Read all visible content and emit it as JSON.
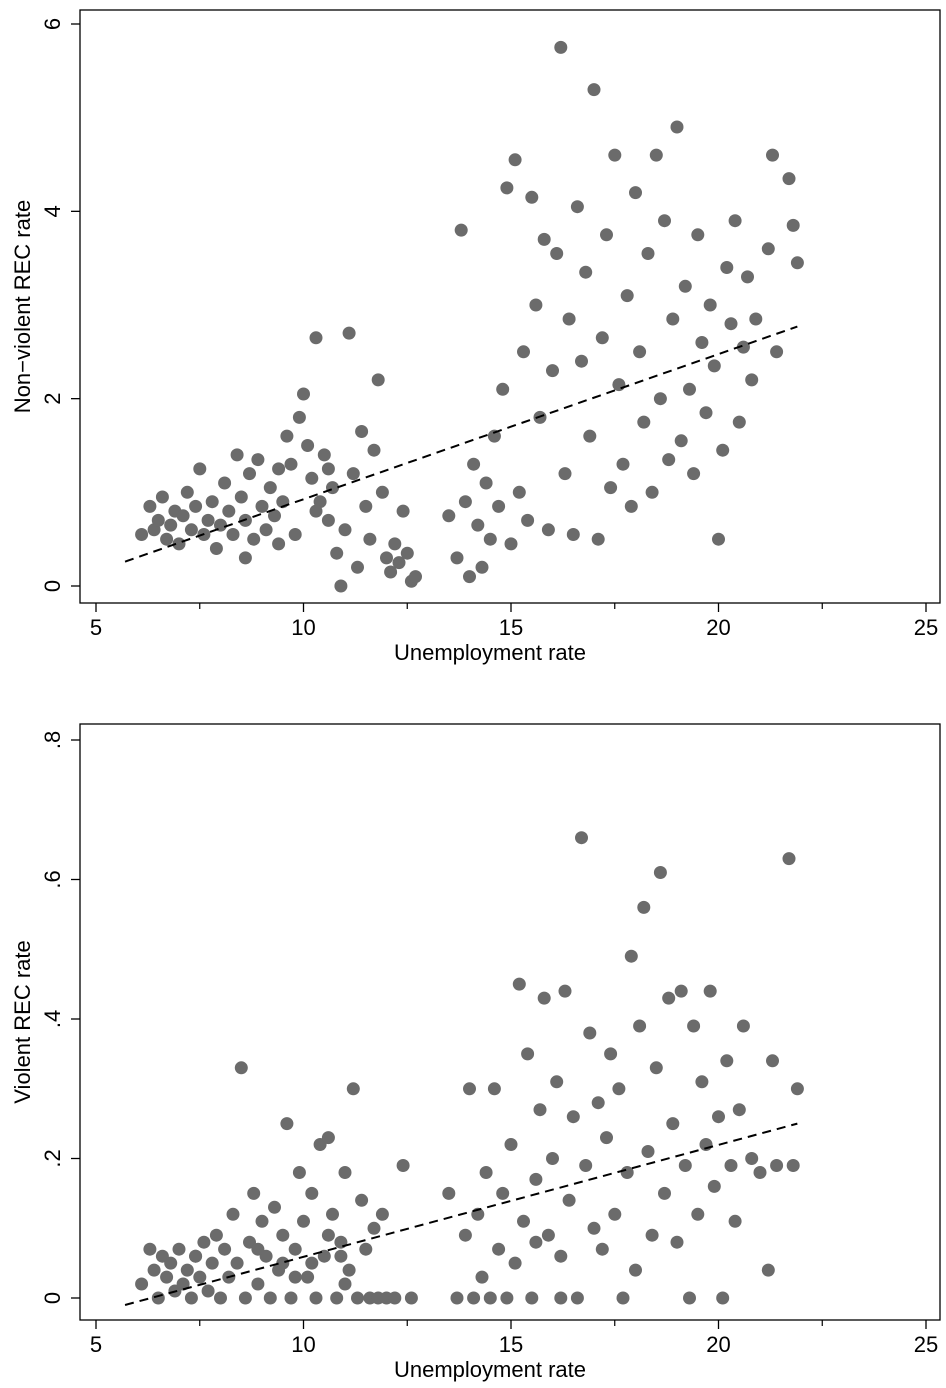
{
  "chart_data": [
    {
      "type": "scatter",
      "xlabel": "Unemployment rate",
      "ylabel": "Non−violent REC rate",
      "xlim": [
        5,
        25
      ],
      "ylim": [
        0,
        6
      ],
      "x_ticks": [
        5,
        10,
        15,
        20,
        25
      ],
      "x_tick_labels": [
        "5",
        "10",
        "15",
        "20",
        "25"
      ],
      "y_ticks": [
        0,
        2,
        4,
        6
      ],
      "y_tick_labels": [
        "0",
        "2",
        "4",
        "6"
      ],
      "grid": false,
      "fit_line": {
        "style": "dashed",
        "x": [
          5.7,
          21.9
        ],
        "y": [
          0.26,
          2.77
        ]
      },
      "point_color": "#6b6b6b",
      "points": [
        [
          6.1,
          0.55
        ],
        [
          6.3,
          0.85
        ],
        [
          6.4,
          0.6
        ],
        [
          6.5,
          0.7
        ],
        [
          6.6,
          0.95
        ],
        [
          6.7,
          0.5
        ],
        [
          6.8,
          0.65
        ],
        [
          6.9,
          0.8
        ],
        [
          7.0,
          0.45
        ],
        [
          7.1,
          0.75
        ],
        [
          7.2,
          1.0
        ],
        [
          7.3,
          0.6
        ],
        [
          7.4,
          0.85
        ],
        [
          7.5,
          1.25
        ],
        [
          7.6,
          0.55
        ],
        [
          7.7,
          0.7
        ],
        [
          7.8,
          0.9
        ],
        [
          7.9,
          0.4
        ],
        [
          8.0,
          0.65
        ],
        [
          8.1,
          1.1
        ],
        [
          8.2,
          0.8
        ],
        [
          8.3,
          0.55
        ],
        [
          8.4,
          1.4
        ],
        [
          8.5,
          0.95
        ],
        [
          8.6,
          0.7
        ],
        [
          8.7,
          1.2
        ],
        [
          8.8,
          0.5
        ],
        [
          8.9,
          1.35
        ],
        [
          9.0,
          0.85
        ],
        [
          9.1,
          0.6
        ],
        [
          9.2,
          1.05
        ],
        [
          9.3,
          0.75
        ],
        [
          9.4,
          1.25
        ],
        [
          9.5,
          0.9
        ],
        [
          9.6,
          1.6
        ],
        [
          9.7,
          1.3
        ],
        [
          9.8,
          0.55
        ],
        [
          9.9,
          1.8
        ],
        [
          10.0,
          2.05
        ],
        [
          10.1,
          1.5
        ],
        [
          10.2,
          1.15
        ],
        [
          10.3,
          2.65
        ],
        [
          10.4,
          0.9
        ],
        [
          10.5,
          1.4
        ],
        [
          10.6,
          0.7
        ],
        [
          10.7,
          1.05
        ],
        [
          10.8,
          0.35
        ],
        [
          10.9,
          0.0
        ],
        [
          11.0,
          0.6
        ],
        [
          11.1,
          2.7
        ],
        [
          11.2,
          1.2
        ],
        [
          11.3,
          0.2
        ],
        [
          11.4,
          1.65
        ],
        [
          11.5,
          0.85
        ],
        [
          11.6,
          0.5
        ],
        [
          11.7,
          1.45
        ],
        [
          11.8,
          2.2
        ],
        [
          11.9,
          1.0
        ],
        [
          12.0,
          0.3
        ],
        [
          12.1,
          0.15
        ],
        [
          12.2,
          0.45
        ],
        [
          12.3,
          0.25
        ],
        [
          12.4,
          0.8
        ],
        [
          12.5,
          0.35
        ],
        [
          12.6,
          0.05
        ],
        [
          12.7,
          0.1
        ],
        [
          10.3,
          0.8
        ],
        [
          10.6,
          1.25
        ],
        [
          9.4,
          0.45
        ],
        [
          8.6,
          0.3
        ],
        [
          13.5,
          0.75
        ],
        [
          13.7,
          0.3
        ],
        [
          13.8,
          3.8
        ],
        [
          13.9,
          0.9
        ],
        [
          14.0,
          0.1
        ],
        [
          14.1,
          1.3
        ],
        [
          14.2,
          0.65
        ],
        [
          14.3,
          0.2
        ],
        [
          14.4,
          1.1
        ],
        [
          14.5,
          0.5
        ],
        [
          14.6,
          1.6
        ],
        [
          14.7,
          0.85
        ],
        [
          14.8,
          2.1
        ],
        [
          14.9,
          4.25
        ],
        [
          15.0,
          0.45
        ],
        [
          15.1,
          4.55
        ],
        [
          15.2,
          1.0
        ],
        [
          15.3,
          2.5
        ],
        [
          15.4,
          0.7
        ],
        [
          15.5,
          4.15
        ],
        [
          15.6,
          3.0
        ],
        [
          15.7,
          1.8
        ],
        [
          15.8,
          3.7
        ],
        [
          15.9,
          0.6
        ],
        [
          16.0,
          2.3
        ],
        [
          16.1,
          3.55
        ],
        [
          16.2,
          5.75
        ],
        [
          16.3,
          1.2
        ],
        [
          16.4,
          2.85
        ],
        [
          16.5,
          0.55
        ],
        [
          16.6,
          4.05
        ],
        [
          16.7,
          2.4
        ],
        [
          16.8,
          3.35
        ],
        [
          16.9,
          1.6
        ],
        [
          17.0,
          5.3
        ],
        [
          17.1,
          0.5
        ],
        [
          17.2,
          2.65
        ],
        [
          17.3,
          3.75
        ],
        [
          17.4,
          1.05
        ],
        [
          17.5,
          4.6
        ],
        [
          17.6,
          2.15
        ],
        [
          17.7,
          1.3
        ],
        [
          17.8,
          3.1
        ],
        [
          17.9,
          0.85
        ],
        [
          18.0,
          4.2
        ],
        [
          18.1,
          2.5
        ],
        [
          18.2,
          1.75
        ],
        [
          18.3,
          3.55
        ],
        [
          18.4,
          1.0
        ],
        [
          18.5,
          4.6
        ],
        [
          18.6,
          2.0
        ],
        [
          18.7,
          3.9
        ],
        [
          18.8,
          1.35
        ],
        [
          18.9,
          2.85
        ],
        [
          19.0,
          4.9
        ],
        [
          19.1,
          1.55
        ],
        [
          19.2,
          3.2
        ],
        [
          19.3,
          2.1
        ],
        [
          19.4,
          1.2
        ],
        [
          19.5,
          3.75
        ],
        [
          19.6,
          2.6
        ],
        [
          19.7,
          1.85
        ],
        [
          19.8,
          3.0
        ],
        [
          19.9,
          2.35
        ],
        [
          20.0,
          0.5
        ],
        [
          20.1,
          1.45
        ],
        [
          20.2,
          3.4
        ],
        [
          20.3,
          2.8
        ],
        [
          20.4,
          3.9
        ],
        [
          20.5,
          1.75
        ],
        [
          20.6,
          2.55
        ],
        [
          20.7,
          3.3
        ],
        [
          20.8,
          2.2
        ],
        [
          20.9,
          2.85
        ],
        [
          21.2,
          3.6
        ],
        [
          21.3,
          4.6
        ],
        [
          21.4,
          2.5
        ],
        [
          21.7,
          4.35
        ],
        [
          21.8,
          3.85
        ],
        [
          21.9,
          3.45
        ]
      ]
    },
    {
      "type": "scatter",
      "xlabel": "Unemployment rate",
      "ylabel": "Violent REC rate",
      "xlim": [
        5,
        25
      ],
      "ylim": [
        0,
        0.8
      ],
      "x_ticks": [
        5,
        10,
        15,
        20,
        25
      ],
      "x_tick_labels": [
        "5",
        "10",
        "15",
        "20",
        "25"
      ],
      "y_ticks": [
        0,
        0.2,
        0.4,
        0.6,
        0.8
      ],
      "y_tick_labels": [
        "0",
        ".2",
        ".4",
        ".6",
        ".8"
      ],
      "grid": false,
      "fit_line": {
        "style": "dashed",
        "x": [
          5.7,
          21.9
        ],
        "y": [
          -0.01,
          0.25
        ]
      },
      "point_color": "#6b6b6b",
      "points": [
        [
          6.1,
          0.02
        ],
        [
          6.3,
          0.07
        ],
        [
          6.4,
          0.04
        ],
        [
          6.5,
          0.0
        ],
        [
          6.6,
          0.06
        ],
        [
          6.7,
          0.03
        ],
        [
          6.8,
          0.05
        ],
        [
          6.9,
          0.01
        ],
        [
          7.0,
          0.07
        ],
        [
          7.1,
          0.02
        ],
        [
          7.2,
          0.04
        ],
        [
          7.3,
          0.0
        ],
        [
          7.4,
          0.06
        ],
        [
          7.5,
          0.03
        ],
        [
          7.6,
          0.08
        ],
        [
          7.7,
          0.01
        ],
        [
          7.8,
          0.05
        ],
        [
          7.9,
          0.09
        ],
        [
          8.0,
          0.0
        ],
        [
          8.1,
          0.07
        ],
        [
          8.2,
          0.03
        ],
        [
          8.3,
          0.12
        ],
        [
          8.4,
          0.05
        ],
        [
          8.5,
          0.33
        ],
        [
          8.6,
          0.0
        ],
        [
          8.7,
          0.08
        ],
        [
          8.8,
          0.15
        ],
        [
          8.9,
          0.02
        ],
        [
          9.0,
          0.11
        ],
        [
          9.1,
          0.06
        ],
        [
          9.2,
          0.0
        ],
        [
          9.3,
          0.13
        ],
        [
          9.4,
          0.04
        ],
        [
          9.5,
          0.09
        ],
        [
          9.6,
          0.25
        ],
        [
          9.7,
          0.0
        ],
        [
          9.8,
          0.07
        ],
        [
          9.9,
          0.18
        ],
        [
          10.0,
          0.11
        ],
        [
          10.1,
          0.03
        ],
        [
          10.2,
          0.15
        ],
        [
          10.3,
          0.0
        ],
        [
          10.4,
          0.22
        ],
        [
          10.5,
          0.06
        ],
        [
          10.6,
          0.23
        ],
        [
          10.7,
          0.12
        ],
        [
          10.8,
          0.0
        ],
        [
          10.9,
          0.08
        ],
        [
          11.0,
          0.18
        ],
        [
          11.1,
          0.04
        ],
        [
          11.2,
          0.3
        ],
        [
          11.3,
          0.0
        ],
        [
          11.4,
          0.14
        ],
        [
          11.5,
          0.07
        ],
        [
          11.6,
          0.0
        ],
        [
          11.7,
          0.1
        ],
        [
          11.8,
          0.0
        ],
        [
          11.9,
          0.12
        ],
        [
          12.0,
          0.0
        ],
        [
          12.2,
          0.0
        ],
        [
          12.4,
          0.19
        ],
        [
          12.6,
          0.0
        ],
        [
          10.2,
          0.05
        ],
        [
          9.8,
          0.03
        ],
        [
          10.6,
          0.09
        ],
        [
          8.9,
          0.07
        ],
        [
          7.4,
          0.06
        ],
        [
          11.0,
          0.02
        ],
        [
          10.9,
          0.06
        ],
        [
          9.5,
          0.05
        ],
        [
          13.5,
          0.15
        ],
        [
          13.7,
          0.0
        ],
        [
          13.9,
          0.09
        ],
        [
          14.0,
          0.3
        ],
        [
          14.1,
          0.0
        ],
        [
          14.2,
          0.12
        ],
        [
          14.3,
          0.03
        ],
        [
          14.4,
          0.18
        ],
        [
          14.5,
          0.0
        ],
        [
          14.6,
          0.3
        ],
        [
          14.7,
          0.07
        ],
        [
          14.8,
          0.15
        ],
        [
          14.9,
          0.0
        ],
        [
          15.0,
          0.22
        ],
        [
          15.1,
          0.05
        ],
        [
          15.2,
          0.45
        ],
        [
          15.3,
          0.11
        ],
        [
          15.4,
          0.35
        ],
        [
          15.5,
          0.0
        ],
        [
          15.6,
          0.17
        ],
        [
          15.7,
          0.27
        ],
        [
          15.8,
          0.43
        ],
        [
          15.9,
          0.09
        ],
        [
          16.0,
          0.2
        ],
        [
          16.1,
          0.31
        ],
        [
          16.2,
          0.06
        ],
        [
          16.3,
          0.44
        ],
        [
          16.4,
          0.14
        ],
        [
          16.5,
          0.26
        ],
        [
          16.6,
          0.0
        ],
        [
          16.7,
          0.66
        ],
        [
          16.8,
          0.19
        ],
        [
          16.9,
          0.38
        ],
        [
          17.0,
          0.1
        ],
        [
          17.1,
          0.28
        ],
        [
          17.2,
          0.07
        ],
        [
          17.3,
          0.23
        ],
        [
          17.4,
          0.35
        ],
        [
          17.5,
          0.12
        ],
        [
          17.6,
          0.3
        ],
        [
          17.7,
          0.0
        ],
        [
          17.8,
          0.18
        ],
        [
          17.9,
          0.49
        ],
        [
          18.0,
          0.04
        ],
        [
          18.1,
          0.39
        ],
        [
          18.2,
          0.56
        ],
        [
          18.3,
          0.21
        ],
        [
          18.4,
          0.09
        ],
        [
          18.5,
          0.33
        ],
        [
          18.6,
          0.61
        ],
        [
          18.7,
          0.15
        ],
        [
          18.8,
          0.43
        ],
        [
          18.9,
          0.25
        ],
        [
          19.0,
          0.08
        ],
        [
          19.1,
          0.44
        ],
        [
          19.2,
          0.19
        ],
        [
          19.3,
          0.0
        ],
        [
          19.4,
          0.39
        ],
        [
          19.5,
          0.12
        ],
        [
          19.6,
          0.31
        ],
        [
          19.7,
          0.22
        ],
        [
          19.8,
          0.44
        ],
        [
          19.9,
          0.16
        ],
        [
          20.0,
          0.26
        ],
        [
          20.1,
          0.0
        ],
        [
          20.2,
          0.34
        ],
        [
          20.3,
          0.19
        ],
        [
          20.4,
          0.11
        ],
        [
          20.5,
          0.27
        ],
        [
          20.6,
          0.39
        ],
        [
          20.8,
          0.2
        ],
        [
          21.0,
          0.18
        ],
        [
          21.2,
          0.04
        ],
        [
          21.3,
          0.34
        ],
        [
          21.4,
          0.19
        ],
        [
          21.7,
          0.63
        ],
        [
          21.8,
          0.19
        ],
        [
          21.9,
          0.3
        ],
        [
          16.2,
          0.0
        ],
        [
          15.6,
          0.08
        ]
      ]
    }
  ]
}
